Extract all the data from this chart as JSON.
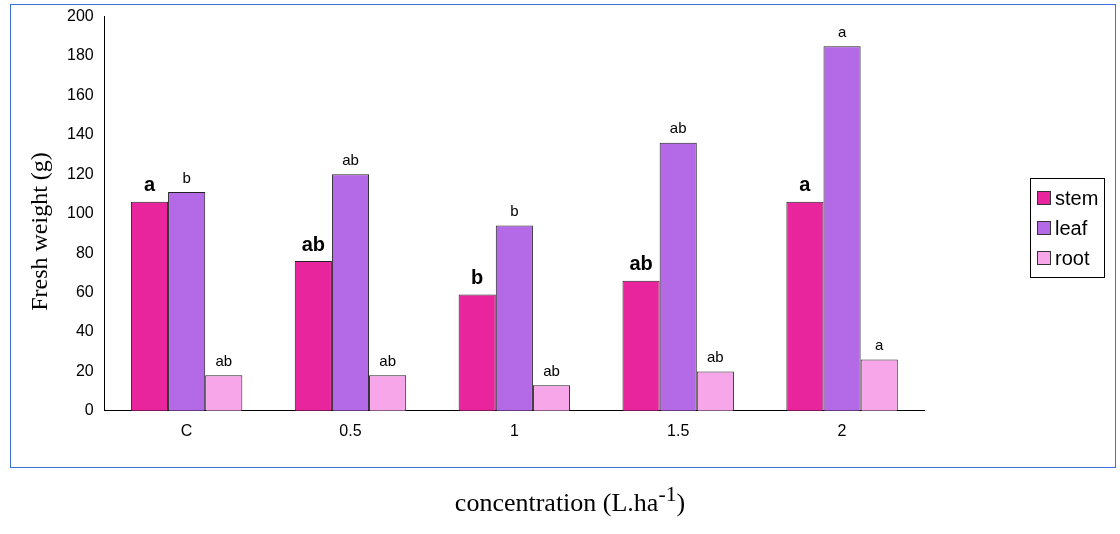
{
  "chart_data": {
    "type": "bar",
    "xlabel": "concentration (L.ha$^{-1}$)",
    "ylabel": "Fresh weight (g)",
    "categories": [
      "C",
      "0.5",
      "1",
      "1.5",
      "2"
    ],
    "series": [
      {
        "name": "stem",
        "color": "#e8259c",
        "values": [
          106,
          76,
          59,
          66,
          106
        ],
        "value_labels": [
          "a",
          "ab",
          "b",
          "ab",
          "a"
        ]
      },
      {
        "name": "leaf",
        "color": "#b46ae6",
        "values": [
          111,
          120,
          94,
          136,
          185
        ],
        "value_labels": [
          "b",
          "ab",
          "b",
          "ab",
          "a"
        ]
      },
      {
        "name": "root",
        "color": "#f7a6ea",
        "values": [
          18,
          18,
          13,
          20,
          26
        ],
        "value_labels": [
          "ab",
          "ab",
          "ab",
          "ab",
          "a"
        ]
      }
    ],
    "ylim": [
      0,
      200
    ],
    "yticks": [
      0,
      20,
      40,
      60,
      80,
      100,
      120,
      140,
      160,
      180,
      200
    ],
    "grid": false,
    "legend": "right"
  }
}
